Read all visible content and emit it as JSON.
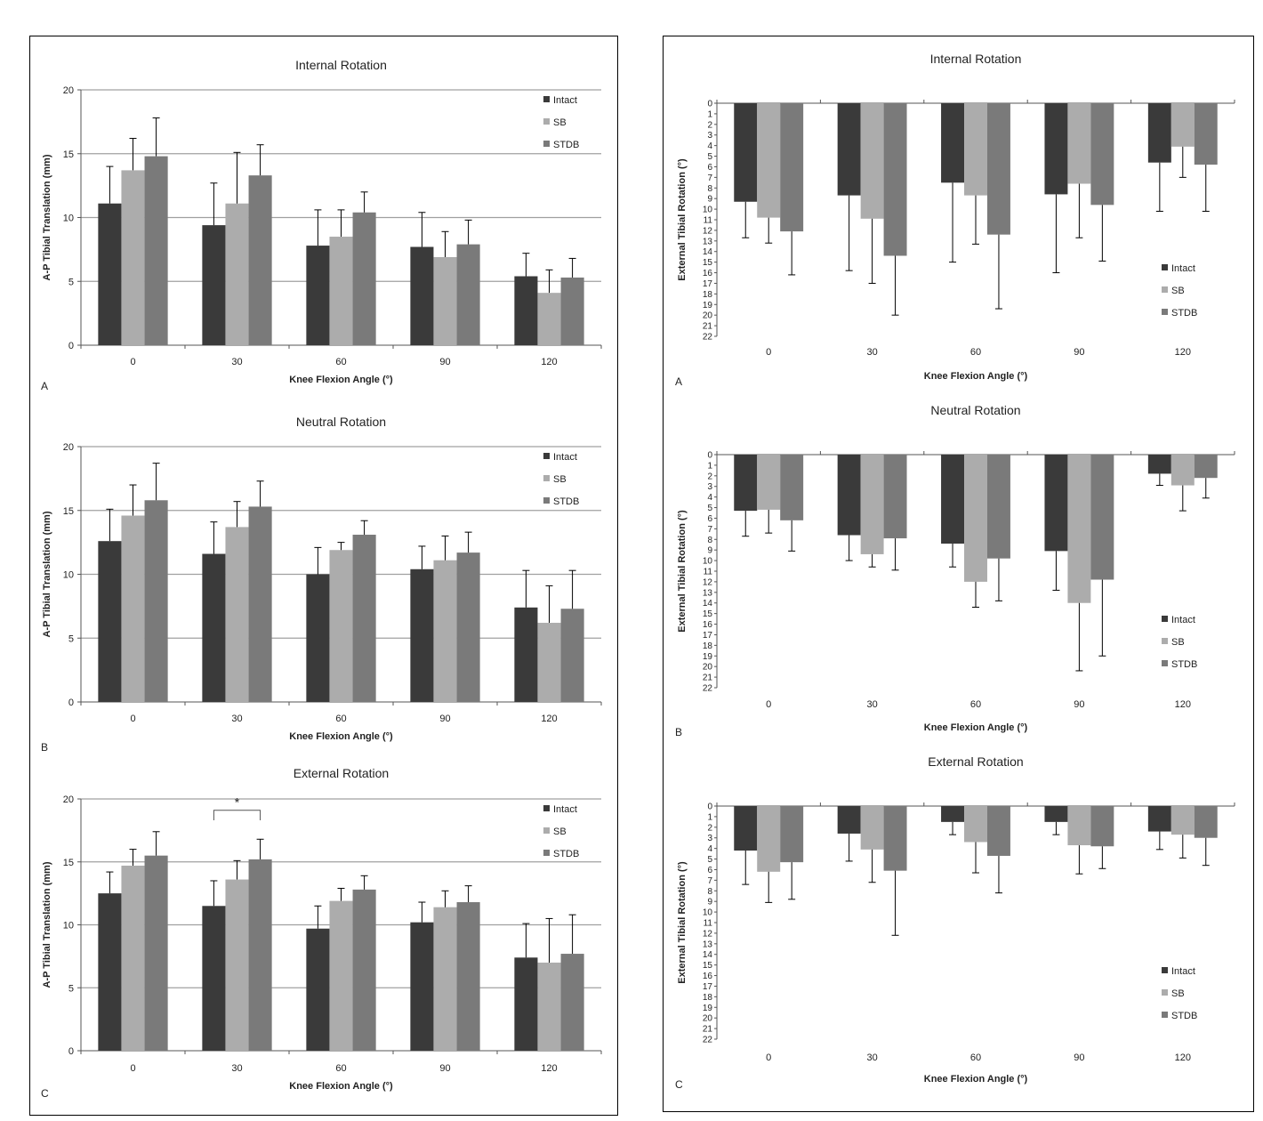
{
  "colors": {
    "intact": "#3a3a3a",
    "sb": "#acacac",
    "stdb": "#7a7a7a",
    "grid": "#a0a0a0",
    "error": "#000000"
  },
  "panels": [
    {
      "name": "left-figure"
    },
    {
      "name": "right-figure"
    }
  ],
  "chart_data": [
    {
      "type": "bar",
      "panel": 0,
      "row": 0,
      "title": "Internal Rotation",
      "xlabel": "Knee Flexion Angle (°)",
      "ylabel": "A-P Tibial Translation (mm)",
      "letter": "A",
      "ylim": [
        0,
        20
      ],
      "yticks": [
        0,
        5,
        10,
        15,
        20
      ],
      "grid": true,
      "orientation": "up",
      "legend_position": "top-right",
      "categories": [
        "0",
        "30",
        "60",
        "90",
        "120"
      ],
      "series": [
        {
          "name": "Intact",
          "color": "intact",
          "values": [
            11.1,
            9.4,
            7.8,
            7.7,
            5.4
          ],
          "errors": [
            2.9,
            3.3,
            2.8,
            2.7,
            1.8
          ]
        },
        {
          "name": "SB",
          "color": "sb",
          "values": [
            13.7,
            11.1,
            8.5,
            6.9,
            4.1
          ],
          "errors": [
            2.5,
            4.0,
            2.1,
            2.0,
            1.8
          ]
        },
        {
          "name": "STDB",
          "color": "stdb",
          "values": [
            14.8,
            13.3,
            10.4,
            7.9,
            5.3
          ],
          "errors": [
            3.0,
            2.4,
            1.6,
            1.9,
            1.5
          ]
        }
      ]
    },
    {
      "type": "bar",
      "panel": 0,
      "row": 1,
      "title": "Neutral Rotation",
      "xlabel": "Knee Flexion Angle (°)",
      "ylabel": "A-P Tibial Translation (mm)",
      "letter": "B",
      "ylim": [
        0,
        20
      ],
      "yticks": [
        0,
        5,
        10,
        15,
        20
      ],
      "grid": true,
      "orientation": "up",
      "legend_position": "top-right",
      "categories": [
        "0",
        "30",
        "60",
        "90",
        "120"
      ],
      "series": [
        {
          "name": "Intact",
          "color": "intact",
          "values": [
            12.6,
            11.6,
            10.0,
            10.4,
            7.4
          ],
          "errors": [
            2.5,
            2.5,
            2.1,
            1.8,
            2.9
          ]
        },
        {
          "name": "SB",
          "color": "sb",
          "values": [
            14.6,
            13.7,
            11.9,
            11.1,
            6.2
          ],
          "errors": [
            2.4,
            2.0,
            0.6,
            1.9,
            2.9
          ]
        },
        {
          "name": "STDB",
          "color": "stdb",
          "values": [
            15.8,
            15.3,
            13.1,
            11.7,
            7.3
          ],
          "errors": [
            2.9,
            2.0,
            1.1,
            1.6,
            3.0
          ]
        }
      ]
    },
    {
      "type": "bar",
      "panel": 0,
      "row": 2,
      "title": "External Rotation",
      "xlabel": "Knee Flexion Angle (°)",
      "ylabel": "A-P Tibial Translation (mm)",
      "letter": "C",
      "ylim": [
        0,
        20
      ],
      "yticks": [
        0,
        5,
        10,
        15,
        20
      ],
      "grid": true,
      "orientation": "up",
      "legend_position": "top-right",
      "annotation": {
        "text": "*",
        "from_category": 1,
        "from_series": 0,
        "to_series": 2
      },
      "categories": [
        "0",
        "30",
        "60",
        "90",
        "120"
      ],
      "series": [
        {
          "name": "Intact",
          "color": "intact",
          "values": [
            12.5,
            11.5,
            9.7,
            10.2,
            7.4
          ],
          "errors": [
            1.7,
            2.0,
            1.8,
            1.6,
            2.7
          ]
        },
        {
          "name": "SB",
          "color": "sb",
          "values": [
            14.7,
            13.6,
            11.9,
            11.4,
            7.0
          ],
          "errors": [
            1.3,
            1.5,
            1.0,
            1.3,
            3.5
          ]
        },
        {
          "name": "STDB",
          "color": "stdb",
          "values": [
            15.5,
            15.2,
            12.8,
            11.8,
            7.7
          ],
          "errors": [
            1.9,
            1.6,
            1.1,
            1.3,
            3.1
          ]
        }
      ]
    },
    {
      "type": "bar",
      "panel": 1,
      "row": 0,
      "title": "Internal Rotation",
      "xlabel": "Knee Flexion Angle (°)",
      "ylabel": "External Tibial  Rotation (°)",
      "letter": "A",
      "ylim": [
        0,
        22
      ],
      "grid": false,
      "orientation": "down",
      "legend_position": "bottom-right",
      "categories": [
        "0",
        "30",
        "60",
        "90",
        "120"
      ],
      "series": [
        {
          "name": "Intact",
          "color": "intact",
          "values": [
            9.3,
            8.7,
            7.5,
            8.6,
            5.6
          ],
          "errors": [
            3.4,
            7.1,
            7.5,
            7.4,
            4.6
          ]
        },
        {
          "name": "SB",
          "color": "sb",
          "values": [
            10.8,
            10.9,
            8.7,
            7.6,
            4.1
          ],
          "errors": [
            2.4,
            6.1,
            4.6,
            5.1,
            2.9
          ]
        },
        {
          "name": "STDB",
          "color": "stdb",
          "values": [
            12.1,
            14.4,
            12.4,
            9.6,
            5.8
          ],
          "errors": [
            4.1,
            5.6,
            7.0,
            5.3,
            4.4
          ]
        }
      ]
    },
    {
      "type": "bar",
      "panel": 1,
      "row": 1,
      "title": "Neutral Rotation",
      "xlabel": "Knee Flexion Angle (°)",
      "ylabel": "External Tibial Rotation (°)",
      "letter": "B",
      "ylim": [
        0,
        22
      ],
      "grid": false,
      "orientation": "down",
      "legend_position": "bottom-right",
      "categories": [
        "0",
        "30",
        "60",
        "90",
        "120"
      ],
      "series": [
        {
          "name": "Intact",
          "color": "intact",
          "values": [
            5.3,
            7.6,
            8.4,
            9.1,
            1.8
          ],
          "errors": [
            2.4,
            2.4,
            2.2,
            3.7,
            1.1
          ]
        },
        {
          "name": "SB",
          "color": "sb",
          "values": [
            5.2,
            9.4,
            12.0,
            14.0,
            2.9
          ],
          "errors": [
            2.2,
            1.2,
            2.4,
            6.4,
            2.4
          ]
        },
        {
          "name": "STDB",
          "color": "stdb",
          "values": [
            6.2,
            7.9,
            9.8,
            11.8,
            2.2
          ],
          "errors": [
            2.9,
            3.0,
            4.0,
            7.2,
            1.9
          ]
        }
      ]
    },
    {
      "type": "bar",
      "panel": 1,
      "row": 2,
      "title": "External Rotation",
      "xlabel": "Knee Flexion Angle (°)",
      "ylabel": "External Tibial Rotation (°)",
      "letter": "C",
      "ylim": [
        0,
        22
      ],
      "grid": false,
      "orientation": "down",
      "legend_position": "bottom-right",
      "categories": [
        "0",
        "30",
        "60",
        "90",
        "120"
      ],
      "series": [
        {
          "name": "Intact",
          "color": "intact",
          "values": [
            4.2,
            2.6,
            1.5,
            1.5,
            2.4
          ],
          "errors": [
            3.2,
            2.6,
            1.2,
            1.2,
            1.7
          ]
        },
        {
          "name": "SB",
          "color": "sb",
          "values": [
            6.2,
            4.1,
            3.4,
            3.7,
            2.7
          ],
          "errors": [
            2.9,
            3.1,
            2.9,
            2.7,
            2.2
          ]
        },
        {
          "name": "STDB",
          "color": "stdb",
          "values": [
            5.3,
            6.1,
            4.7,
            3.8,
            3.0
          ],
          "errors": [
            3.5,
            6.1,
            3.5,
            2.1,
            2.6
          ]
        }
      ]
    }
  ]
}
